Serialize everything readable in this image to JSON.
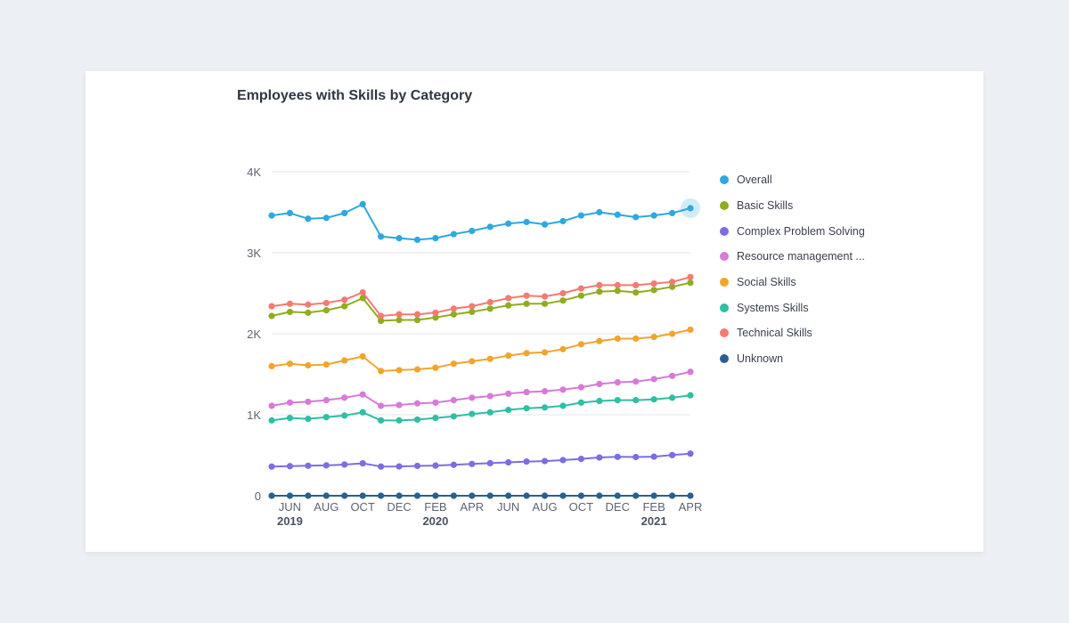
{
  "chart_data": {
    "type": "line",
    "title": "Employees with Skills by Category",
    "ylim": [
      0,
      4000
    ],
    "y_ticks": [
      {
        "value": 0,
        "label": "0"
      },
      {
        "value": 1000,
        "label": "1K"
      },
      {
        "value": 2000,
        "label": "2K"
      },
      {
        "value": 3000,
        "label": "3K"
      },
      {
        "value": 4000,
        "label": "4K"
      }
    ],
    "x_ticks": [
      {
        "index": 1,
        "label": "JUN",
        "year": "2019"
      },
      {
        "index": 3,
        "label": "AUG",
        "year": ""
      },
      {
        "index": 5,
        "label": "OCT",
        "year": ""
      },
      {
        "index": 7,
        "label": "DEC",
        "year": ""
      },
      {
        "index": 9,
        "label": "FEB",
        "year": "2020"
      },
      {
        "index": 11,
        "label": "APR",
        "year": ""
      },
      {
        "index": 13,
        "label": "JUN",
        "year": ""
      },
      {
        "index": 15,
        "label": "AUG",
        "year": ""
      },
      {
        "index": 17,
        "label": "OCT",
        "year": ""
      },
      {
        "index": 19,
        "label": "DEC",
        "year": ""
      },
      {
        "index": 21,
        "label": "FEB",
        "year": "2021"
      },
      {
        "index": 23,
        "label": "APR",
        "year": ""
      }
    ],
    "point_count": 24,
    "highlight_index": 23,
    "series": [
      {
        "name": "Overall",
        "color": "#2ea8e0",
        "values": [
          3460,
          3490,
          3420,
          3430,
          3490,
          3600,
          3200,
          3180,
          3160,
          3180,
          3230,
          3270,
          3320,
          3360,
          3380,
          3350,
          3390,
          3460,
          3500,
          3470,
          3440,
          3460,
          3490,
          3550
        ]
      },
      {
        "name": "Basic Skills",
        "color": "#8fad1e",
        "values": [
          2220,
          2270,
          2260,
          2290,
          2340,
          2440,
          2160,
          2170,
          2170,
          2200,
          2240,
          2270,
          2310,
          2350,
          2370,
          2370,
          2410,
          2470,
          2520,
          2530,
          2510,
          2540,
          2580,
          2630
        ]
      },
      {
        "name": "Complex Problem Solving",
        "color": "#7b6ee0",
        "values": [
          360,
          365,
          370,
          375,
          385,
          400,
          360,
          362,
          368,
          372,
          382,
          392,
          402,
          412,
          422,
          428,
          440,
          455,
          472,
          480,
          478,
          482,
          502,
          520
        ]
      },
      {
        "name": "Resource management ...",
        "color": "#d77ad8",
        "values": [
          1110,
          1150,
          1160,
          1180,
          1210,
          1250,
          1110,
          1120,
          1140,
          1150,
          1180,
          1210,
          1230,
          1260,
          1280,
          1290,
          1310,
          1340,
          1380,
          1400,
          1410,
          1440,
          1480,
          1530
        ]
      },
      {
        "name": "Social Skills",
        "color": "#f0a52d",
        "values": [
          1600,
          1630,
          1610,
          1620,
          1670,
          1720,
          1540,
          1550,
          1560,
          1580,
          1630,
          1660,
          1690,
          1730,
          1760,
          1770,
          1810,
          1870,
          1910,
          1940,
          1940,
          1960,
          2000,
          2050
        ]
      },
      {
        "name": "Systems Skills",
        "color": "#2fbfa4",
        "values": [
          930,
          960,
          950,
          970,
          990,
          1030,
          930,
          930,
          940,
          960,
          980,
          1010,
          1030,
          1060,
          1080,
          1090,
          1110,
          1150,
          1170,
          1180,
          1180,
          1190,
          1210,
          1240
        ]
      },
      {
        "name": "Technical Skills",
        "color": "#f47a72",
        "values": [
          2340,
          2370,
          2360,
          2380,
          2420,
          2510,
          2220,
          2240,
          2240,
          2260,
          2310,
          2340,
          2390,
          2440,
          2470,
          2460,
          2500,
          2560,
          2600,
          2600,
          2600,
          2620,
          2640,
          2700
        ]
      },
      {
        "name": "Unknown",
        "color": "#2b5f8f",
        "values": [
          0,
          0,
          0,
          0,
          0,
          0,
          0,
          0,
          0,
          0,
          0,
          0,
          0,
          0,
          0,
          0,
          0,
          0,
          0,
          0,
          0,
          0,
          0,
          0
        ]
      }
    ]
  }
}
